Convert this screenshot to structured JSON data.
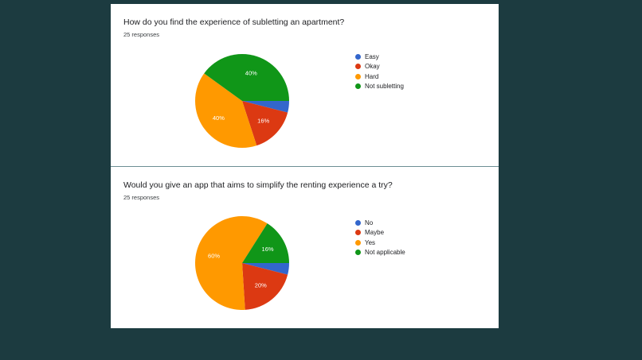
{
  "colors": {
    "blue": "#3366cc",
    "red": "#dc3912",
    "orange": "#ff9900",
    "green": "#109618"
  },
  "chart_data": [
    {
      "type": "pie",
      "title": "How do you find the experience of subletting an apartment?",
      "subtitle": "25 responses",
      "categories": [
        "Easy",
        "Okay",
        "Hard",
        "Not subletting"
      ],
      "values": [
        4,
        16,
        40,
        40
      ],
      "labels": [
        "",
        "16%",
        "40%",
        "40%"
      ],
      "colors": [
        "#3366cc",
        "#dc3912",
        "#ff9900",
        "#109618"
      ],
      "legend_position": "right"
    },
    {
      "type": "pie",
      "title": "Would you give an app that aims to simplify the renting experience a try?",
      "subtitle": "25 responses",
      "categories": [
        "No",
        "Maybe",
        "Yes",
        "Not applicable"
      ],
      "values": [
        4,
        20,
        60,
        16
      ],
      "labels": [
        "",
        "20%",
        "60%",
        "16%"
      ],
      "colors": [
        "#3366cc",
        "#dc3912",
        "#ff9900",
        "#109618"
      ],
      "legend_position": "right"
    }
  ]
}
